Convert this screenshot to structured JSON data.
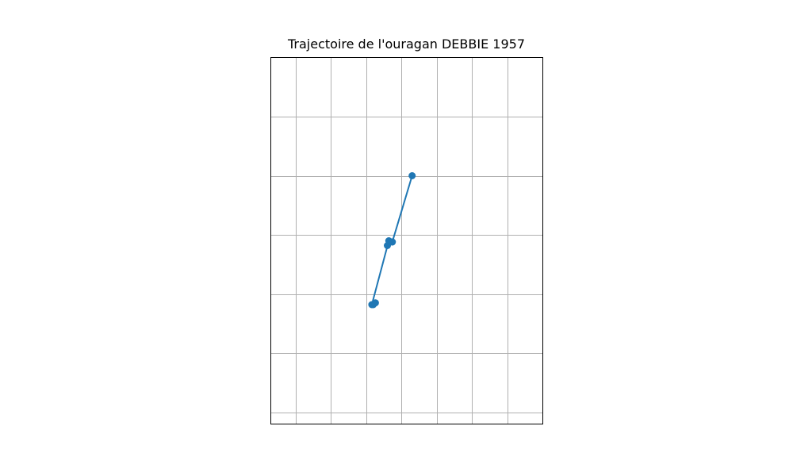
{
  "chart_data": {
    "type": "line",
    "title": "Trajectoire de l'ouragan DEBBIE 1957",
    "xlabel": "",
    "ylabel": "",
    "xlim": [
      -1.05,
      2.8
    ],
    "ylim": [
      -3.2,
      3.0
    ],
    "xgrid": [
      -0.7,
      -0.2,
      0.3,
      0.8,
      1.3,
      1.8,
      2.3
    ],
    "ygrid": [
      2.0,
      1.0,
      0.0,
      -1.0,
      -2.0,
      -3.0
    ],
    "series": [
      {
        "x": [
          0.95,
          0.67,
          0.67,
          0.6,
          0.62,
          0.38,
          0.43,
          0.4
        ],
        "y": [
          1.0,
          -0.12,
          -0.12,
          -0.18,
          -0.1,
          -1.18,
          -1.15,
          -1.18
        ],
        "color": "#1f77b4",
        "marker": "circle"
      }
    ],
    "grid": true,
    "legend": "none",
    "grid_color": "#b0b0b0",
    "axes_color": "#000000"
  }
}
